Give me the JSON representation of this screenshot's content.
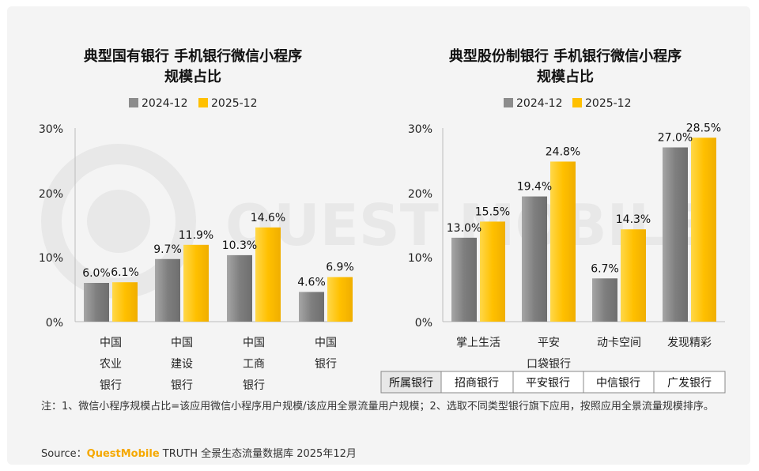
{
  "watermark": "QUEST MOBILE",
  "legend": [
    "2024-12",
    "2025-12"
  ],
  "colors": {
    "series_2024": "#8c8c8c",
    "series_2025": "#ffc000",
    "brand": "#f5a800"
  },
  "chart_data": [
    {
      "type": "bar",
      "title_lines": [
        "典型国有银行 手机银行微信小程序",
        "规模占比"
      ],
      "categories": [
        [
          "中国",
          "农业",
          "银行"
        ],
        [
          "中国",
          "建设",
          "银行"
        ],
        [
          "中国",
          "工商",
          "银行"
        ],
        [
          "中国",
          "银行"
        ]
      ],
      "series": [
        {
          "name": "2024-12",
          "values": [
            6.0,
            9.7,
            10.3,
            4.6
          ],
          "labels": [
            "6.0%",
            "9.7%",
            "10.3%",
            "4.6%"
          ]
        },
        {
          "name": "2025-12",
          "values": [
            6.1,
            11.9,
            14.6,
            6.9
          ],
          "labels": [
            "6.1%",
            "11.9%",
            "14.6%",
            "6.9%"
          ]
        }
      ],
      "yticks": [
        "30%",
        "20%",
        "10%",
        "0%"
      ],
      "ylim": [
        0,
        30
      ]
    },
    {
      "type": "bar",
      "title_lines": [
        "典型股份制银行 手机银行微信小程序",
        "规模占比"
      ],
      "categories": [
        [
          "掌上生活"
        ],
        [
          "平安",
          "口袋银行"
        ],
        [
          "动卡空间"
        ],
        [
          "发现精彩"
        ]
      ],
      "series": [
        {
          "name": "2024-12",
          "values": [
            13.0,
            19.4,
            6.7,
            27.0
          ],
          "labels": [
            "13.0%",
            "19.4%",
            "6.7%",
            "27.0%"
          ]
        },
        {
          "name": "2025-12",
          "values": [
            15.5,
            24.8,
            14.3,
            28.5
          ],
          "labels": [
            "15.5%",
            "24.8%",
            "14.3%",
            "28.5%"
          ]
        }
      ],
      "yticks": [
        "30%",
        "20%",
        "10%",
        "0%"
      ],
      "ylim": [
        0,
        30
      ],
      "table": {
        "header": "所属银行",
        "cells": [
          "招商银行",
          "平安银行",
          "中信银行",
          "广发银行"
        ]
      }
    }
  ],
  "note": "注：1、微信小程序规模占比=该应用微信小程序用户规模/该应用全景流量用户规模；2、选取不同类型银行旗下应用，按照应用全景流量规模排序。",
  "source": {
    "prefix": "Source：",
    "brand": "QuestMobile",
    "rest": " TRUTH 全景生态流量数据库 2025年12月"
  }
}
